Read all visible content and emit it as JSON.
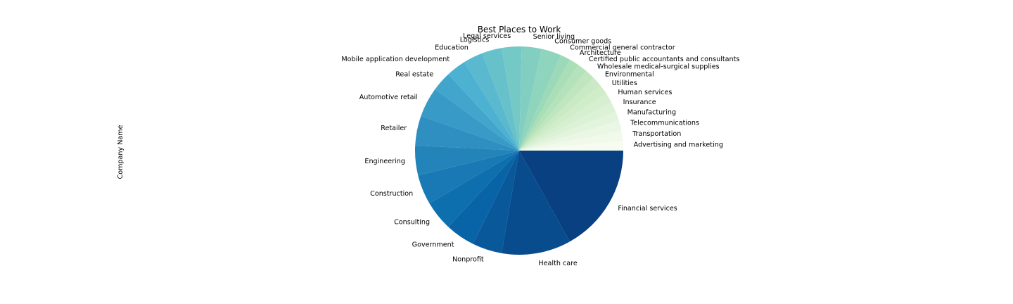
{
  "chart_data": {
    "type": "pie",
    "title": "Best Places to Work",
    "ylabel": "Company Name",
    "start_angle_deg": 0,
    "direction": "counterclockwise",
    "legend": "none",
    "colormap": "GnBu",
    "slices": [
      {
        "label": "Advertising and marketing",
        "value": 1
      },
      {
        "label": "Transportation",
        "value": 1
      },
      {
        "label": "Telecommunications",
        "value": 1
      },
      {
        "label": "Manufacturing",
        "value": 1
      },
      {
        "label": "Insurance",
        "value": 1
      },
      {
        "label": "Human services",
        "value": 1
      },
      {
        "label": "Utilities",
        "value": 1
      },
      {
        "label": "Environmental",
        "value": 1
      },
      {
        "label": "Wholesale medical-surgical supplies",
        "value": 1
      },
      {
        "label": "Certified public accountants and consultants",
        "value": 1
      },
      {
        "label": "Architecture",
        "value": 1
      },
      {
        "label": "Commercial general contractor",
        "value": 1
      },
      {
        "label": "Consumer goods",
        "value": 2
      },
      {
        "label": "Senior living",
        "value": 2
      },
      {
        "label": "Legal services",
        "value": 2
      },
      {
        "label": "Logistics",
        "value": 2
      },
      {
        "label": "Education",
        "value": 2
      },
      {
        "label": "Mobile application development",
        "value": 2
      },
      {
        "label": "Real estate",
        "value": 2
      },
      {
        "label": "Automotive retail",
        "value": 3
      },
      {
        "label": "Retailer",
        "value": 3
      },
      {
        "label": "Engineering",
        "value": 3
      },
      {
        "label": "Construction",
        "value": 3
      },
      {
        "label": "Consulting",
        "value": 3
      },
      {
        "label": "Government",
        "value": 3
      },
      {
        "label": "Nonprofit",
        "value": 3
      },
      {
        "label": "Health care",
        "value": 7
      },
      {
        "label": "Financial services",
        "value": 11
      }
    ]
  }
}
